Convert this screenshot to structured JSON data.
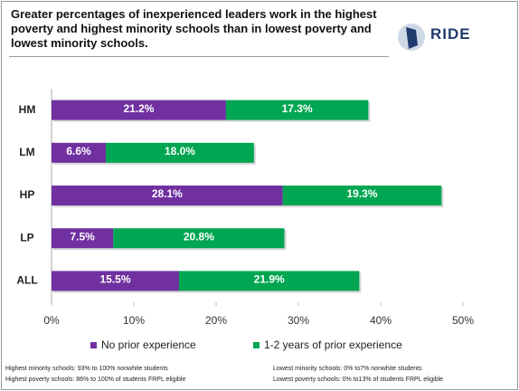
{
  "chart_data": {
    "type": "stacked_barh",
    "title": "Greater percentages of inexperienced leaders work in the highest poverty and highest minority schools than in lowest poverty and lowest minority schools.",
    "logo": "RIDE",
    "categories": [
      "HM",
      "LM",
      "HP",
      "LP",
      "ALL"
    ],
    "series": [
      {
        "name": "No prior experience",
        "color": "#7030a0",
        "values": [
          21.2,
          6.6,
          28.1,
          7.5,
          15.5
        ],
        "value_labels": [
          "21.2%",
          "6.6%",
          "28.1%",
          "7.5%",
          "15.5%"
        ]
      },
      {
        "name": "1-2 years of prior experience",
        "color": "#00a651",
        "values": [
          17.3,
          18.0,
          19.3,
          20.8,
          21.9
        ],
        "value_labels": [
          "17.3%",
          "18.0%",
          "19.3%",
          "20.8%",
          "21.9%"
        ]
      }
    ],
    "xlim": [
      0,
      50
    ],
    "xticks": [
      {
        "value": 0,
        "label": "0%"
      },
      {
        "value": 10,
        "label": "10%"
      },
      {
        "value": 20,
        "label": "20%"
      },
      {
        "value": 30,
        "label": "30%"
      },
      {
        "value": 40,
        "label": "40%"
      },
      {
        "value": 50,
        "label": "50%"
      }
    ],
    "legend": "bottom",
    "notes": [
      "Highest minority schools: 93% to 100% nonwhite students",
      "Highest poverty schools: 86% to 100% of students FRPL eligible",
      "Lowest minority schools: 0% to7% nonwhite students",
      "Lowest poverty schools: 0% to13% of students FRPL eligible"
    ]
  }
}
